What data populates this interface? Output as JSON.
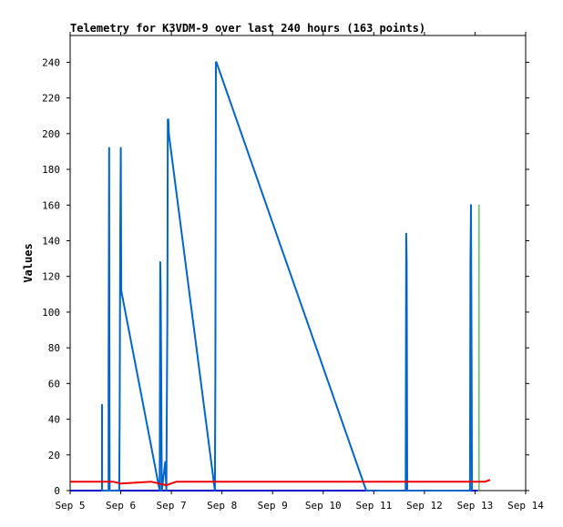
{
  "chart_data": {
    "type": "line",
    "title": "Telemetry for K3VDM-9 over last 240 hours (163 points)",
    "xlabel": "",
    "ylabel": "Values",
    "xlim": [
      0,
      9
    ],
    "ylim": [
      0,
      255
    ],
    "x_ticks": [
      {
        "value": 0,
        "label": "Sep 5"
      },
      {
        "value": 1,
        "label": "Sep 6"
      },
      {
        "value": 2,
        "label": "Sep 7"
      },
      {
        "value": 3,
        "label": "Sep 8"
      },
      {
        "value": 4,
        "label": "Sep 9"
      },
      {
        "value": 5,
        "label": "Sep 10"
      },
      {
        "value": 6,
        "label": "Sep 11"
      },
      {
        "value": 7,
        "label": "Sep 12"
      },
      {
        "value": 8,
        "label": "Sep 13"
      },
      {
        "value": 9,
        "label": "Sep 14"
      }
    ],
    "y_ticks": [
      0,
      20,
      40,
      60,
      80,
      100,
      120,
      140,
      160,
      180,
      200,
      220,
      240
    ],
    "grid": false,
    "legend": "none",
    "series": [
      {
        "color": "#0000cc",
        "width": 2,
        "points": [
          [
            0.0,
            0
          ],
          [
            8.05,
            0
          ]
        ]
      },
      {
        "color": "#00aa00",
        "width": 1,
        "points": [
          [
            8.08,
            0
          ],
          [
            8.08,
            160
          ],
          [
            8.08,
            0
          ]
        ]
      },
      {
        "color": "#0066cc",
        "width": 2,
        "points": [
          [
            0.63,
            0
          ],
          [
            0.63,
            48
          ],
          [
            0.63,
            0
          ],
          [
            0.76,
            0
          ],
          [
            0.76,
            64
          ],
          [
            0.77,
            192
          ],
          [
            0.78,
            0
          ],
          [
            0.97,
            0
          ],
          [
            0.98,
            48
          ],
          [
            0.99,
            144
          ],
          [
            1.0,
            192
          ],
          [
            1.01,
            112
          ],
          [
            1.77,
            0
          ],
          [
            1.78,
            128
          ],
          [
            1.79,
            112
          ],
          [
            1.8,
            64
          ],
          [
            1.81,
            0
          ],
          [
            1.88,
            16
          ],
          [
            1.9,
            0
          ],
          [
            1.92,
            96
          ],
          [
            1.93,
            208
          ],
          [
            1.94,
            208
          ],
          [
            1.95,
            200
          ],
          [
            2.86,
            0
          ],
          [
            2.87,
            64
          ],
          [
            2.88,
            240
          ],
          [
            2.89,
            240
          ],
          [
            5.85,
            0
          ],
          [
            6.1,
            0
          ],
          [
            6.63,
            0
          ],
          [
            6.64,
            144
          ],
          [
            6.65,
            128
          ],
          [
            6.66,
            0
          ],
          [
            7.9,
            0
          ],
          [
            7.91,
            128
          ],
          [
            7.92,
            160
          ],
          [
            7.93,
            80
          ],
          [
            7.94,
            0
          ]
        ]
      },
      {
        "color": "#ee0000",
        "width": 2,
        "points": [
          [
            0.0,
            5
          ],
          [
            0.5,
            5
          ],
          [
            0.85,
            5
          ],
          [
            1.0,
            4
          ],
          [
            1.6,
            5
          ],
          [
            1.9,
            3
          ],
          [
            2.1,
            5
          ],
          [
            6.0,
            5
          ],
          [
            8.2,
            5
          ],
          [
            8.3,
            6
          ]
        ]
      }
    ]
  }
}
